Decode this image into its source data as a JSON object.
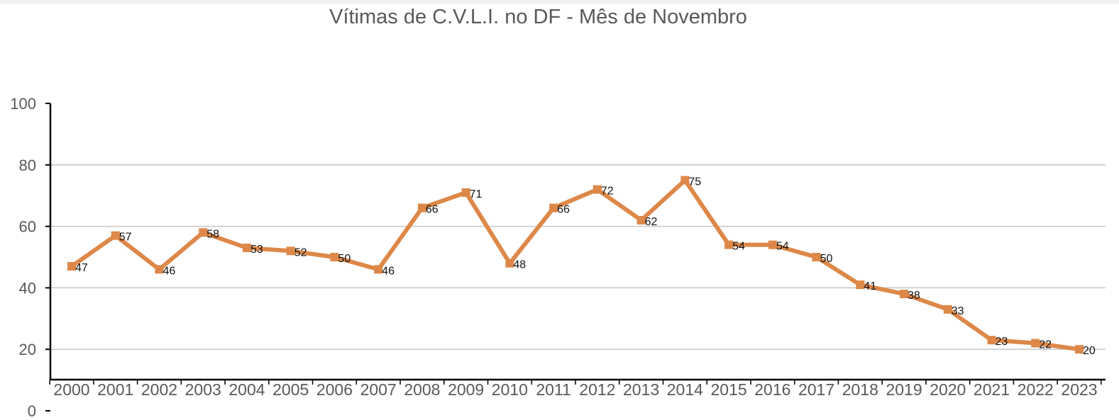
{
  "chart_data": {
    "type": "line",
    "title": "Vítimas de C.V.L.I. no DF - Mês de Novembro",
    "xlabel": "",
    "ylabel": "",
    "ylim": [
      0,
      100
    ],
    "yticks": [
      "0",
      "20",
      "40",
      "60",
      "80",
      "100"
    ],
    "grid": true,
    "legend": "none",
    "categories": [
      "2000",
      "2001",
      "2002",
      "2003",
      "2004",
      "2005",
      "2006",
      "2007",
      "2008",
      "2009",
      "2010",
      "2011",
      "2012",
      "2013",
      "2014",
      "2015",
      "2016",
      "2017",
      "2018",
      "2019",
      "2020",
      "2021",
      "2022",
      "2023"
    ],
    "series": [
      {
        "values": [
          47,
          57,
          46,
          58,
          53,
          52,
          50,
          46,
          66,
          71,
          48,
          66,
          72,
          62,
          75,
          54,
          54,
          50,
          41,
          38,
          33,
          23,
          22,
          20
        ],
        "data_labels": [
          "47",
          "57",
          "46",
          "58",
          "53",
          "52",
          "50",
          "46",
          "66",
          "71",
          "48",
          "66",
          "72",
          "62",
          "75",
          "54",
          "54",
          "50",
          "41",
          "38",
          "33",
          "23",
          "22",
          "20"
        ],
        "color": "#dd8848"
      }
    ],
    "colors": {
      "line": "#dd8848",
      "grid": "#c6c6c6",
      "axis": "#000000",
      "text": "#595959"
    }
  }
}
